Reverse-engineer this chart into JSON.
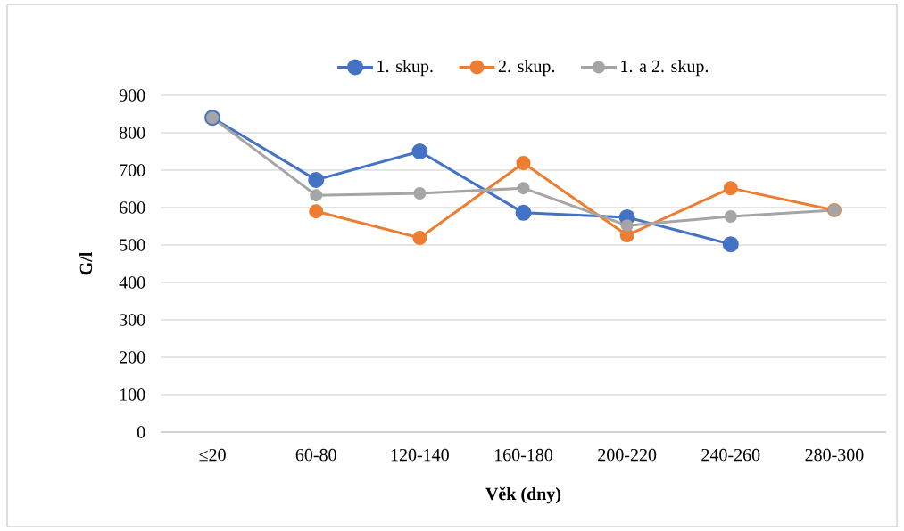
{
  "chart_data": {
    "type": "line",
    "xlabel": "Věk (dny)",
    "ylabel": "G/l",
    "categories": [
      "≤20",
      "60-80",
      "120-140",
      "160-180",
      "200-220",
      "240-260",
      "280-300"
    ],
    "series": [
      {
        "name": "1. skup.",
        "color": "#4472c4",
        "values": [
          840,
          674,
          750,
          586,
          574,
          502,
          null
        ]
      },
      {
        "name": "2. skup.",
        "color": "#ed7d31",
        "values": [
          null,
          590,
          519,
          719,
          526,
          652,
          593
        ]
      },
      {
        "name": "1. a 2. skup.",
        "color": "#a5a5a5",
        "values": [
          840,
          633,
          638,
          652,
          552,
          576,
          593
        ]
      }
    ],
    "ylim": [
      0,
      900
    ],
    "yticks": [
      0,
      100,
      200,
      300,
      400,
      500,
      600,
      700,
      800,
      900
    ],
    "grid": "y",
    "legend": "top",
    "marker": "circle",
    "line_style": "solid"
  }
}
